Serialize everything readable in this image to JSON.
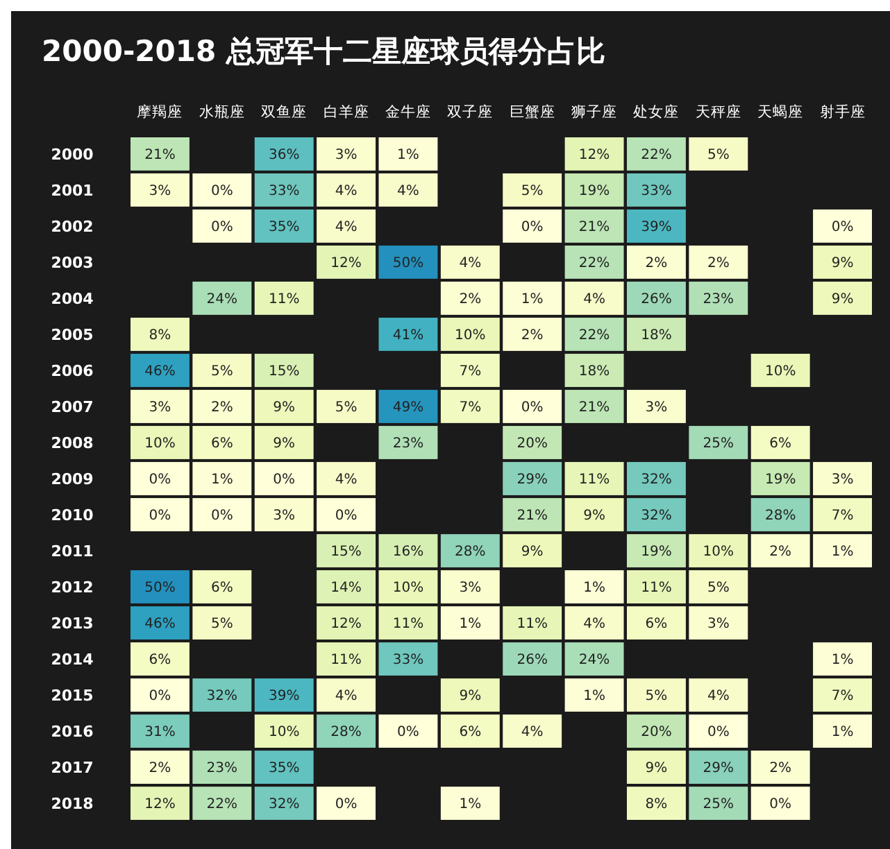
{
  "chart_data": {
    "type": "heatmap",
    "title": "2000-2018 总冠军十二星座球员得分占比",
    "categories": [
      "摩羯座",
      "水瓶座",
      "双鱼座",
      "白羊座",
      "金牛座",
      "双子座",
      "巨蟹座",
      "狮子座",
      "处女座",
      "天秤座",
      "天蝎座",
      "射手座"
    ],
    "y_categories": [
      "2000",
      "2001",
      "2002",
      "2003",
      "2004",
      "2005",
      "2006",
      "2007",
      "2008",
      "2009",
      "2010",
      "2011",
      "2012",
      "2013",
      "2014",
      "2015",
      "2016",
      "2017",
      "2018"
    ],
    "cells": [
      [
        21,
        null,
        36,
        3,
        1,
        null,
        null,
        12,
        22,
        5,
        null,
        null
      ],
      [
        3,
        0,
        33,
        4,
        4,
        null,
        5,
        19,
        33,
        null,
        null,
        null
      ],
      [
        null,
        0,
        35,
        4,
        null,
        null,
        0,
        21,
        39,
        null,
        null,
        0
      ],
      [
        null,
        null,
        null,
        12,
        50,
        4,
        null,
        22,
        2,
        2,
        null,
        9
      ],
      [
        null,
        24,
        11,
        null,
        null,
        2,
        1,
        4,
        26,
        23,
        null,
        9
      ],
      [
        8,
        null,
        null,
        null,
        41,
        10,
        2,
        22,
        18,
        null,
        null,
        null
      ],
      [
        46,
        5,
        15,
        null,
        null,
        7,
        null,
        18,
        null,
        null,
        10,
        null
      ],
      [
        3,
        2,
        9,
        5,
        49,
        7,
        0,
        21,
        3,
        null,
        null,
        null
      ],
      [
        10,
        6,
        9,
        null,
        23,
        null,
        20,
        null,
        null,
        25,
        6,
        null
      ],
      [
        0,
        1,
        0,
        4,
        null,
        null,
        29,
        11,
        32,
        null,
        19,
        3
      ],
      [
        0,
        0,
        3,
        0,
        null,
        null,
        21,
        9,
        32,
        null,
        28,
        7
      ],
      [
        null,
        null,
        null,
        15,
        16,
        28,
        9,
        null,
        19,
        10,
        2,
        1
      ],
      [
        50,
        6,
        null,
        14,
        10,
        3,
        null,
        1,
        11,
        5,
        null,
        null
      ],
      [
        46,
        5,
        null,
        12,
        11,
        1,
        11,
        4,
        6,
        3,
        null,
        null
      ],
      [
        6,
        null,
        null,
        11,
        33,
        null,
        26,
        24,
        null,
        null,
        null,
        1
      ],
      [
        0,
        32,
        39,
        4,
        null,
        9,
        null,
        1,
        5,
        4,
        null,
        7
      ],
      [
        31,
        null,
        10,
        28,
        0,
        6,
        4,
        null,
        20,
        0,
        null,
        1
      ],
      [
        2,
        23,
        35,
        null,
        null,
        null,
        null,
        null,
        9,
        29,
        2,
        null
      ],
      [
        12,
        22,
        32,
        0,
        null,
        1,
        null,
        null,
        8,
        25,
        0,
        null
      ]
    ],
    "cell_labels": [
      [
        "21%",
        null,
        "36%",
        "3%",
        "1%",
        null,
        null,
        "12%",
        "22%",
        "5%",
        null,
        null
      ],
      [
        "3%",
        "0%",
        "33%",
        "4%",
        "4%",
        null,
        "5%",
        "19%",
        "33%",
        null,
        null,
        null
      ],
      [
        null,
        "0%",
        "35%",
        "4%",
        null,
        null,
        "0%",
        "21%",
        "39%",
        null,
        null,
        "0%"
      ],
      [
        null,
        null,
        null,
        "12%",
        "50%",
        "4%",
        null,
        "22%",
        "2%",
        "2%",
        null,
        "9%"
      ],
      [
        null,
        "24%",
        "11%",
        null,
        null,
        "2%",
        "1%",
        "4%",
        "26%",
        "23%",
        null,
        "9%"
      ],
      [
        "8%",
        null,
        null,
        null,
        "41%",
        "10%",
        "2%",
        "22%",
        "18%",
        null,
        null,
        null
      ],
      [
        "46%",
        "5%",
        "15%",
        null,
        null,
        "7%",
        null,
        "18%",
        null,
        null,
        "10%",
        null
      ],
      [
        "3%",
        "2%",
        "9%",
        "5%",
        "49%",
        "7%",
        "0%",
        "21%",
        "3%",
        null,
        null,
        null
      ],
      [
        "10%",
        "6%",
        "9%",
        null,
        "23%",
        null,
        "20%",
        null,
        null,
        "25%",
        "6%",
        null
      ],
      [
        "0%",
        "1%",
        "0%",
        "4%",
        null,
        null,
        "29%",
        "11%",
        "32%",
        null,
        "19%",
        "3%"
      ],
      [
        "0%",
        "0%",
        "3%",
        "0%",
        null,
        null,
        "21%",
        "9%",
        "32%",
        null,
        "28%",
        "7%"
      ],
      [
        null,
        null,
        null,
        "15%",
        "16%",
        "28%",
        "9%",
        null,
        "19%",
        "10%",
        "2%",
        "1%"
      ],
      [
        "50%",
        "6%",
        null,
        "14%",
        "10%",
        "3%",
        null,
        "1%",
        "11%",
        "5%",
        null,
        null
      ],
      [
        "46%",
        "5%",
        null,
        "12%",
        "11%",
        "1%",
        "11%",
        "4%",
        "6%",
        "3%",
        null,
        null
      ],
      [
        "6%",
        null,
        null,
        "11%",
        "33%",
        null,
        "26%",
        "24%",
        null,
        null,
        null,
        "1%"
      ],
      [
        "0%",
        "32%",
        "39%",
        "4%",
        null,
        "9%",
        null,
        "1%",
        "5%",
        "4%",
        null,
        "7%"
      ],
      [
        "31%",
        null,
        "10%",
        "28%",
        "0%",
        "6%",
        "4%",
        null,
        "20%",
        "0%",
        null,
        "1%"
      ],
      [
        "2%",
        "23%",
        "35%",
        null,
        null,
        null,
        null,
        null,
        "9%",
        "29%",
        "2%",
        null
      ],
      [
        "12%",
        "22%",
        "32%",
        "0%",
        null,
        "1%",
        null,
        null,
        "8%",
        "25%",
        "0%",
        null
      ]
    ]
  }
}
